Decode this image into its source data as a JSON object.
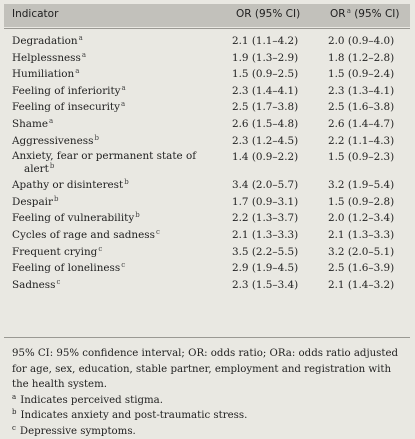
{
  "header": {
    "indicator_label": "Indicator",
    "or_label": "OR (95% CI)",
    "ora_label": "OR",
    "ora_sup": "a",
    "ora_label_tail": "(95% CI)"
  },
  "rows": [
    {
      "indicator": "Degradation",
      "sup": "a",
      "or": "2.1 (1.1–4.2)",
      "ora": "2.0 (0.9–4.0)"
    },
    {
      "indicator": "Helplessness",
      "sup": "a",
      "or": "1.9 (1.3–2.9)",
      "ora": "1.8 (1.2–2.8)"
    },
    {
      "indicator": "Humiliation",
      "sup": "a",
      "or": "1.5 (0.9–2.5)",
      "ora": "1.5 (0.9–2.4)"
    },
    {
      "indicator": "Feeling of inferiority",
      "sup": "a",
      "or": "2.3 (1.4–4.1)",
      "ora": "2.3 (1.3–4.1)"
    },
    {
      "indicator": "Feeling of insecurity",
      "sup": "a",
      "or": "2.5 (1.7–3.8)",
      "ora": "2.5 (1.6–3.8)"
    },
    {
      "indicator": "Shame",
      "sup": "a",
      "or": "2.6 (1.5–4.8)",
      "ora": "2.6 (1.4–4.7)"
    },
    {
      "indicator": "Aggressiveness",
      "sup": "b",
      "or": "2.3 (1.2–4.5)",
      "ora": "2.2 (1.1–4.3)"
    },
    {
      "indicator_line1": "Anxiety, fear or permanent state of",
      "indicator_line2": "alert",
      "sup": "b",
      "or": "1.4 (0.9–2.2)",
      "ora": "1.5 (0.9–2.3)"
    },
    {
      "indicator": "Apathy or disinterest",
      "sup": "b",
      "or": "3.4 (2.0–5.7)",
      "ora": "3.2 (1.9–5.4)"
    },
    {
      "indicator": "Despair",
      "sup": "b",
      "or": "1.7 (0.9–3.1)",
      "ora": "1.5 (0.9–2.8)"
    },
    {
      "indicator": "Feeling of vulnerability",
      "sup": "b",
      "or": "2.2 (1.3–3.7)",
      "ora": "2.0 (1.2–3.4)"
    },
    {
      "indicator": "Cycles of rage and sadness",
      "sup": "c",
      "or": "2.1 (1.3–3.3)",
      "ora": "2.1 (1.3–3.3)"
    },
    {
      "indicator": "Frequent crying",
      "sup": "c",
      "or": "3.5 (2.2–5.5)",
      "ora": "3.2 (2.0–5.1)"
    },
    {
      "indicator": "Feeling of loneliness",
      "sup": "c",
      "or": "2.9 (1.9–4.5)",
      "ora": "2.5 (1.6–3.9)"
    },
    {
      "indicator": "Sadness",
      "sup": "c",
      "or": "2.3 (1.5–3.4)",
      "ora": "2.1 (1.4–3.2)"
    }
  ],
  "footnotes": {
    "abbrev": "95% CI: 95% confidence interval; OR: odds ratio; ORa: odds ratio adjusted for age, sex, education, stable partner, employment and registration with the health system.",
    "notes": [
      {
        "mark": "a",
        "text": "Indicates perceived stigma."
      },
      {
        "mark": "b",
        "text": "Indicates anxiety and post-traumatic stress."
      },
      {
        "mark": "c",
        "text": "Depressive symptoms."
      }
    ]
  }
}
